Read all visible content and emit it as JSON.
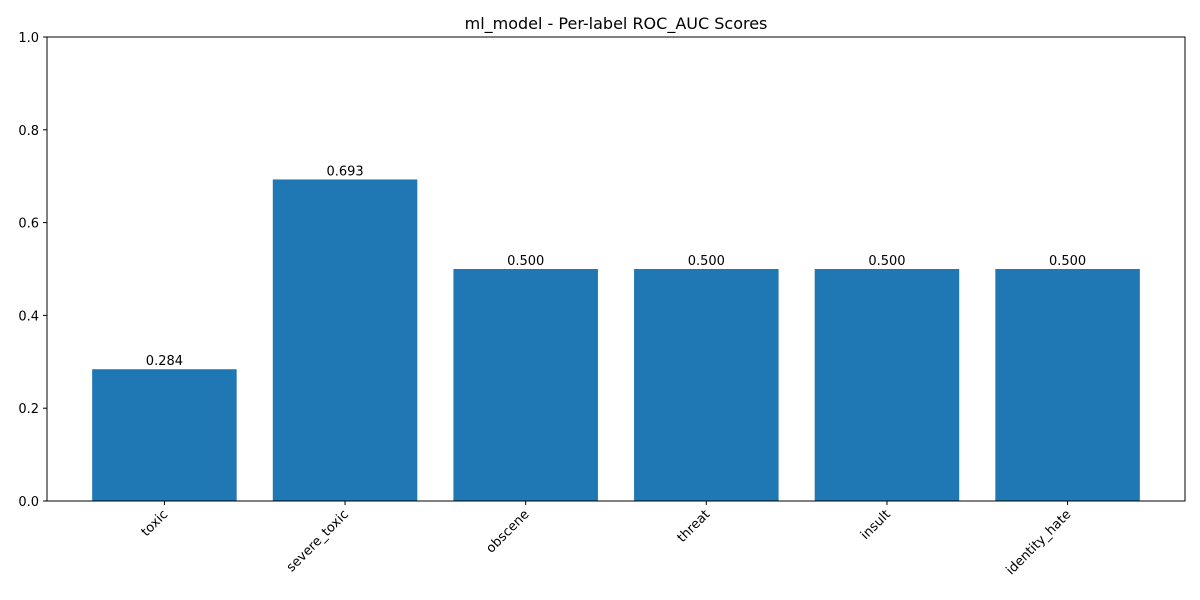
{
  "chart_data": {
    "type": "bar",
    "title": "ml_model - Per-label ROC_AUC Scores",
    "xlabel": "",
    "ylabel": "",
    "categories": [
      "toxic",
      "severe_toxic",
      "obscene",
      "threat",
      "insult",
      "identity_hate"
    ],
    "values": [
      0.284,
      0.693,
      0.5,
      0.5,
      0.5,
      0.5
    ],
    "value_labels": [
      "0.284",
      "0.693",
      "0.500",
      "0.500",
      "0.500",
      "0.500"
    ],
    "ylim": [
      0,
      1
    ],
    "yticks": [
      0.0,
      0.2,
      0.4,
      0.6,
      0.8,
      1.0
    ],
    "ytick_labels": [
      "0.0",
      "0.2",
      "0.4",
      "0.6",
      "0.8",
      "1.0"
    ],
    "xtick_rotation": 45,
    "grid": false,
    "legend": "none",
    "bar_color": "#1f77b4"
  }
}
